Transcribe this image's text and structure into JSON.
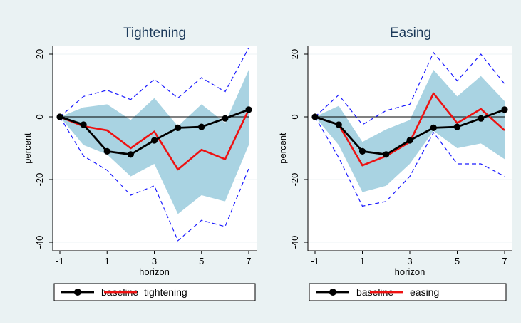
{
  "colors": {
    "figure_bg": "#eaf2f3",
    "plot_bg": "#ffffff",
    "band": "#a9d3e2",
    "ci_line": "#1a1aff",
    "baseline": "#000000",
    "alt_series": "#ee1111",
    "title": "#1c3a5a"
  },
  "chart_data": [
    {
      "type": "line",
      "title": "Tightening",
      "xlabel": "horizon",
      "ylabel": "percent",
      "xlim": [
        -1,
        7
      ],
      "ylim": [
        -40,
        20
      ],
      "x_ticks": [
        "-1",
        "1",
        "3",
        "5",
        "7"
      ],
      "y_ticks": [
        "20",
        "0",
        "-20",
        "-40"
      ],
      "grid": false,
      "zero_line": true,
      "x": [
        -1,
        0,
        1,
        2,
        3,
        4,
        5,
        6,
        7
      ],
      "band": {
        "upper": [
          0,
          3,
          4,
          -1,
          6,
          -3,
          4,
          -2,
          15
        ],
        "lower": [
          0,
          -9,
          -12,
          -19,
          -15,
          -31,
          -25,
          -27,
          -9
        ]
      },
      "ci_bounds": {
        "upper": [
          0,
          6.5,
          8.5,
          5.5,
          12,
          6,
          12.5,
          8,
          22
        ],
        "lower": [
          0,
          -12.5,
          -17,
          -25,
          -22,
          -39.5,
          -33,
          -35,
          -16.5
        ]
      },
      "series": [
        {
          "name": "baseline",
          "values": [
            0,
            -2.5,
            -11,
            -12,
            -7.5,
            -3.5,
            -3.2,
            -0.5,
            2.3
          ]
        },
        {
          "name": "tightening",
          "values": [
            0,
            -3,
            -4.3,
            -10,
            -4.7,
            -16.8,
            -10.5,
            -13.5,
            2.3
          ]
        }
      ],
      "legend_position": "bottom"
    },
    {
      "type": "line",
      "title": "Easing",
      "xlabel": "horizon",
      "ylabel": "percent",
      "xlim": [
        -1,
        7
      ],
      "ylim": [
        -40,
        20
      ],
      "x_ticks": [
        "-1",
        "1",
        "3",
        "5",
        "7"
      ],
      "y_ticks": [
        "20",
        "0",
        "-20",
        "-40"
      ],
      "grid": false,
      "zero_line": true,
      "x": [
        -1,
        0,
        1,
        2,
        3,
        4,
        5,
        6,
        7
      ],
      "band": {
        "upper": [
          0,
          3.5,
          -8,
          -4,
          -1,
          15,
          6.5,
          13,
          5
        ],
        "lower": [
          0,
          -9,
          -24,
          -22,
          -15,
          -4.5,
          -10,
          -8.5,
          -13.5
        ]
      },
      "ci_bounds": {
        "upper": [
          0,
          7,
          -2.5,
          2,
          4,
          20.5,
          11.5,
          20,
          10.5
        ],
        "lower": [
          0,
          -13,
          -28.5,
          -27,
          -19,
          -5,
          -15,
          -15,
          -19
        ]
      },
      "series": [
        {
          "name": "baseline",
          "values": [
            0,
            -2.5,
            -11,
            -12,
            -7.5,
            -3.5,
            -3.2,
            -0.5,
            2.3
          ]
        },
        {
          "name": "easing",
          "values": [
            0,
            -2.5,
            -15.5,
            -12.5,
            -8,
            7.5,
            -2,
            2.5,
            -4.3
          ]
        }
      ],
      "legend_position": "bottom"
    }
  ]
}
